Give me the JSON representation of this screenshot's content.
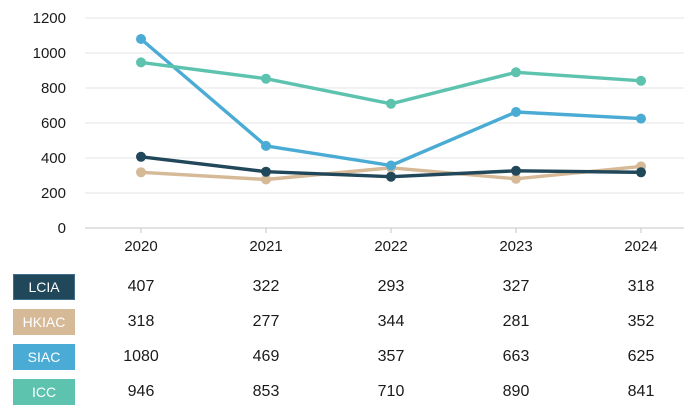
{
  "chart_data": {
    "type": "line",
    "title": "",
    "xlabel": "",
    "ylabel": "",
    "x": [
      "2020",
      "2021",
      "2022",
      "2023",
      "2024"
    ],
    "series": [
      {
        "name": "LCIA",
        "color": "#21475a",
        "swatch_border": "#3f7090",
        "values": [
          407,
          322,
          293,
          327,
          318
        ]
      },
      {
        "name": "HKIAC",
        "color": "#d6b996",
        "values": [
          318,
          277,
          344,
          281,
          352
        ]
      },
      {
        "name": "SIAC",
        "color": "#4aabd4",
        "values": [
          1080,
          469,
          357,
          663,
          625
        ]
      },
      {
        "name": "ICC",
        "color": "#5dc3af",
        "values": [
          946,
          853,
          710,
          890,
          841
        ]
      }
    ],
    "ylim": [
      0,
      1200
    ],
    "yticks": [
      0,
      200,
      400,
      600,
      800,
      1000,
      1200
    ],
    "grid": true,
    "legend_position": "table-left-below"
  },
  "colors": {
    "grid": "#e4e4e4",
    "axis": "#c6c6c6",
    "text": "#1a1a1a",
    "legend_text": "#ffffff",
    "background": "#ffffff"
  }
}
